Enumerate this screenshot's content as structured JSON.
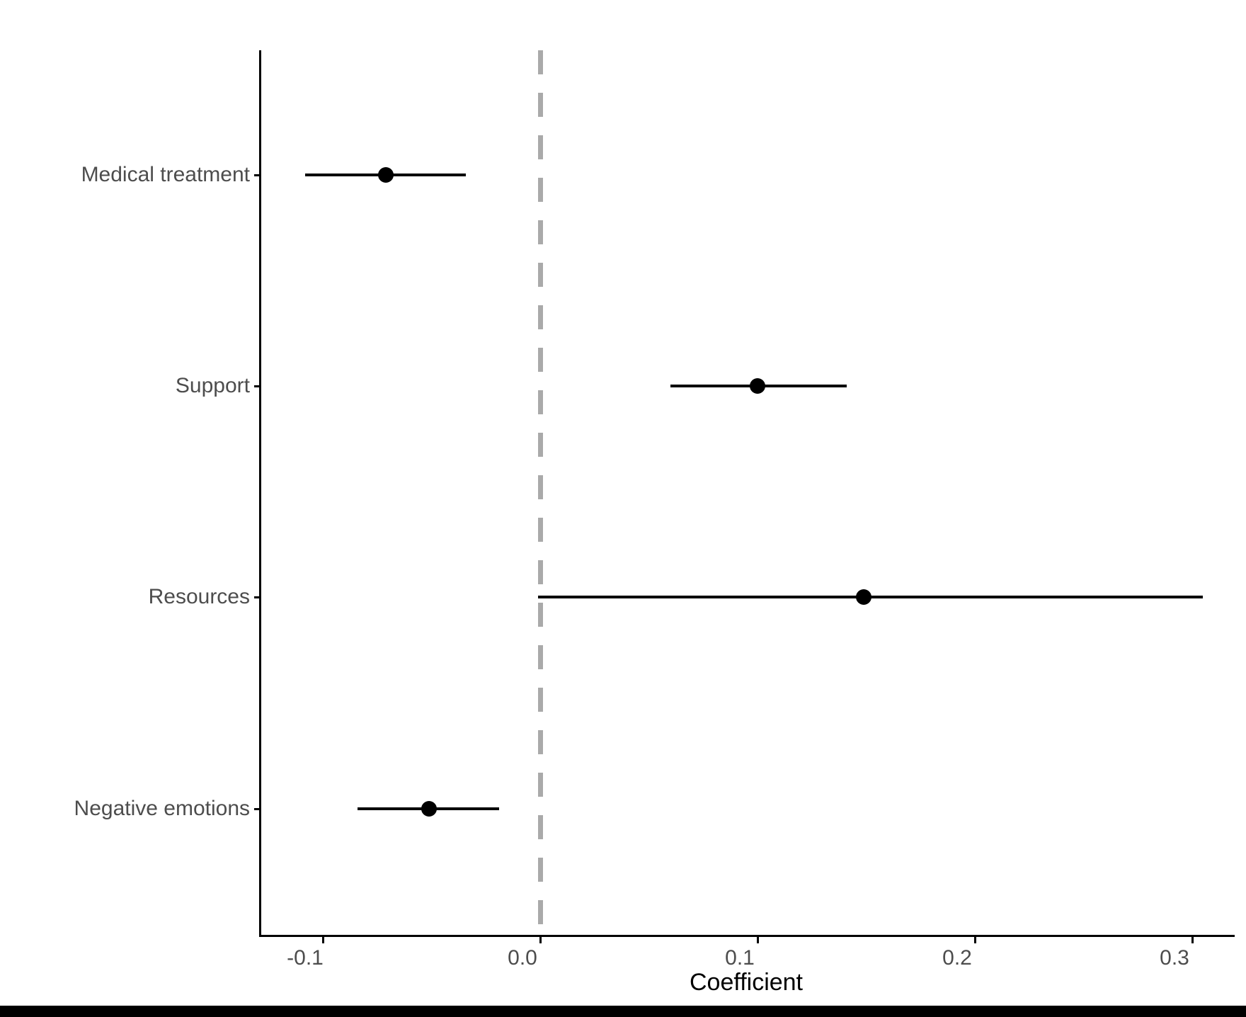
{
  "chart_data": {
    "type": "scatter",
    "subtype": "coefficient-forest-plot",
    "title": "",
    "xlabel": "Coefficient",
    "ylabel": "",
    "categories": [
      "Medical treatment",
      "Support",
      "Resources",
      "Negative emotions"
    ],
    "points": [
      {
        "label": "Medical treatment",
        "estimate": -0.071,
        "ci_low": -0.108,
        "ci_high": -0.034
      },
      {
        "label": "Support",
        "estimate": 0.1,
        "ci_low": 0.06,
        "ci_high": 0.141
      },
      {
        "label": "Resources",
        "estimate": 0.149,
        "ci_low": -0.001,
        "ci_high": 0.305
      },
      {
        "label": "Negative emotions",
        "estimate": -0.051,
        "ci_low": -0.084,
        "ci_high": -0.019
      }
    ],
    "x_ticks": [
      -0.1,
      0.0,
      0.1,
      0.2,
      0.3
    ],
    "xlim": [
      -0.129,
      0.32
    ],
    "reference_line": {
      "x": 0.0,
      "style": "dashed"
    },
    "grid": false,
    "legend": false
  },
  "colors": {
    "background": "#FFFFFF",
    "axis": "#000000",
    "axis_text": "#4D4D4D",
    "axis_title": "#000000",
    "point": "#000000",
    "ci_line": "#000000",
    "reference_line": "#AAAAAA",
    "bottom_bar": "#000000"
  }
}
